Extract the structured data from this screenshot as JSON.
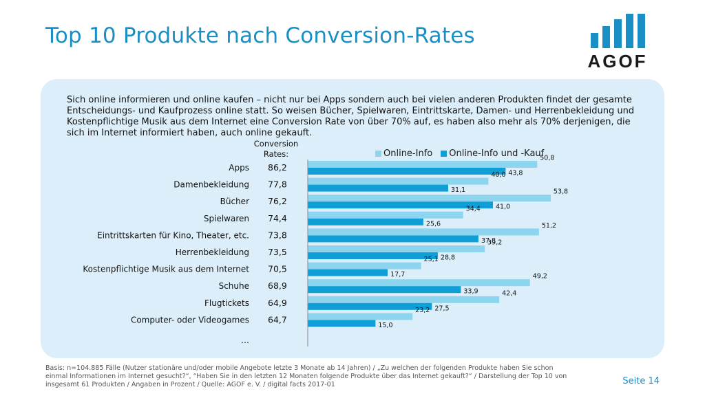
{
  "title": "Top 10 Produkte nach Conversion-Rates",
  "logo": {
    "text": "AGOF",
    "color": "#1a8fc4"
  },
  "intro": "Sich online informieren und online kaufen – nicht nur bei Apps sondern auch bei vielen anderen Produkten findet der gesamte Entscheidungs- und Kaufprozess online statt. So weisen Bücher, Spielwaren, Eintrittskarte, Damen- und Herrenbekleidung und Kostenpflichtige Musik aus dem Internet eine Conversion Rate von über 70% auf, es haben also mehr als 70% derjenigen, die sich im Internet informiert haben, auch online gekauft.",
  "conversion_header_line1": "Conversion",
  "conversion_header_line2": "Rates:",
  "ellipsis": "…",
  "footer": "Basis: n=104.885 Fälle (Nutzer stationäre und/oder mobile Angebote letzte 3 Monate ab 14 Jahren) / „Zu welchen der folgenden Produkte haben Sie schon einmal Informationen im Internet gesucht?“, “Haben Sie in den letzten 12 Monaten folgende Produkte über das Internet gekauft?“ / Darstellung der Top 10 von insgesamt 61 Produkten / Angaben in Prozent / Quelle: AGOF e. V. / digital facts 2017-01",
  "page_number": "Seite 14",
  "colors": {
    "light": "#8dd5ee",
    "dark": "#0f9fd6",
    "panel": "#dbeef9",
    "accent": "#1a8fc4"
  },
  "chart_data": {
    "type": "bar",
    "orientation": "horizontal",
    "categories": [
      "Apps",
      "Damenbekleidung",
      "Bücher",
      "Spielwaren",
      "Eintrittskarten für Kino, Theater, etc.",
      "Herrenbekleidung",
      "Kostenpflichtige Musik aus dem Internet",
      "Schuhe",
      "Flugtickets",
      "Computer- oder Videogames"
    ],
    "conversion_rates": [
      "86,2",
      "77,8",
      "76,2",
      "74,4",
      "73,8",
      "73,5",
      "70,5",
      "68,9",
      "64,9",
      "64,7"
    ],
    "series": [
      {
        "name": "Online-Info",
        "values": [
          50.8,
          40.0,
          53.8,
          34.4,
          51.2,
          39.2,
          25.1,
          49.2,
          42.4,
          23.2
        ],
        "labels": [
          "50,8",
          "40,0",
          "53,8",
          "34,4",
          "51,2",
          "39,2",
          "25,1",
          "49,2",
          "42,4",
          "23,2"
        ]
      },
      {
        "name": "Online-Info und -Kauf",
        "values": [
          43.8,
          31.1,
          41.0,
          25.6,
          37.8,
          28.8,
          17.7,
          33.9,
          27.5,
          15.0
        ],
        "labels": [
          "43,8",
          "31,1",
          "41,0",
          "25,6",
          "37,8",
          "28,8",
          "17,7",
          "33,9",
          "27,5",
          "15,0"
        ]
      }
    ],
    "xlim": [
      0,
      60
    ],
    "legend_position": "top"
  }
}
